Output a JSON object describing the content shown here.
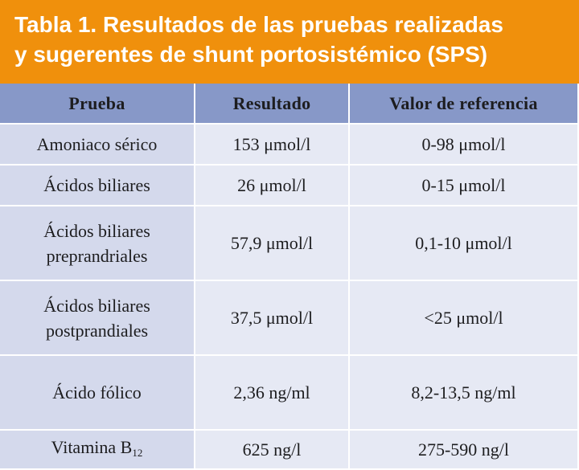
{
  "title": {
    "line1": "Tabla 1. Resultados de las pruebas realizadas",
    "line2": "y sugerentes de shunt portosistémico (SPS)"
  },
  "headers": {
    "test": "Prueba",
    "result": "Resultado",
    "reference": "Valor de referencia"
  },
  "rows": [
    {
      "test": "Amoniaco sérico",
      "result": "153 μmol/l",
      "reference": "0-98 μmol/l"
    },
    {
      "test": "Ácidos biliares",
      "result": "26 μmol/l",
      "reference": "0-15 μmol/l"
    },
    {
      "test_line1": "Ácidos biliares",
      "test_line2": "preprandriales",
      "result": "57,9 μmol/l",
      "reference": "0,1-10 μmol/l"
    },
    {
      "test_line1": "Ácidos biliares",
      "test_line2": "postprandiales",
      "result": "37,5 μmol/l",
      "reference": "<25 μmol/l"
    },
    {
      "test": "Ácido fólico",
      "result": "2,36 ng/ml",
      "reference": "8,2-13,5 ng/ml"
    },
    {
      "test": "Vitamina B",
      "test_sub": "12",
      "result": "625 ng/l",
      "reference": "275-590 ng/l"
    }
  ],
  "colors": {
    "title_bg": "#f0900c",
    "header_bg": "#8798c8",
    "first_col_bg": "#d4d9ec",
    "cell_bg": "#e6e9f4"
  }
}
